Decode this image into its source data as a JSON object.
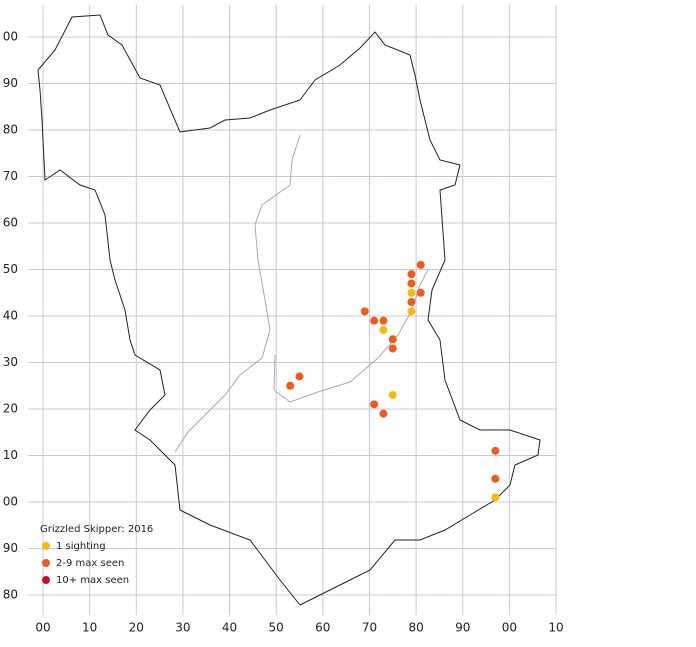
{
  "chart_data": {
    "type": "scatter",
    "legend_title": "Grizzled Skipper:  2016",
    "xlim": [
      0,
      110
    ],
    "ylim": [
      80,
      200
    ],
    "xticks": [
      {
        "value": 0,
        "label": "00"
      },
      10,
      20,
      30,
      40,
      50,
      60,
      70,
      80,
      90,
      {
        "value": 100,
        "label": "00"
      },
      {
        "value": 110,
        "label": "10"
      }
    ],
    "yticks": [
      80,
      90,
      {
        "value": 100,
        "label": "00"
      },
      {
        "value": 110,
        "label": "10"
      },
      {
        "value": 120,
        "label": "20"
      },
      {
        "value": 130,
        "label": "30"
      },
      {
        "value": 140,
        "label": "40"
      },
      {
        "value": 150,
        "label": "50"
      },
      {
        "value": 160,
        "label": "60"
      },
      {
        "value": 170,
        "label": "70"
      },
      {
        "value": 180,
        "label": "80"
      },
      {
        "value": 190,
        "label": "90"
      },
      {
        "value": 200,
        "label": "00"
      }
    ],
    "grid": true,
    "series": [
      {
        "name": "1 sighting",
        "color": "#f5b90f",
        "x": [
          79,
          79,
          73,
          75,
          97
        ],
        "values": [
          145,
          141,
          137,
          123,
          101
        ]
      },
      {
        "name": "2-9 max seen",
        "color": "#f05a1e",
        "x": [
          81,
          79,
          79,
          79,
          81,
          69,
          71,
          73,
          75,
          75,
          55,
          53,
          71,
          73,
          97,
          97
        ],
        "values": [
          151,
          149,
          147,
          143,
          145,
          141,
          139,
          139,
          135,
          133,
          127,
          125,
          121,
          119,
          111,
          105
        ]
      },
      {
        "name": "10+ max seen",
        "color": "#c8102e",
        "x": [],
        "values": []
      }
    ]
  }
}
